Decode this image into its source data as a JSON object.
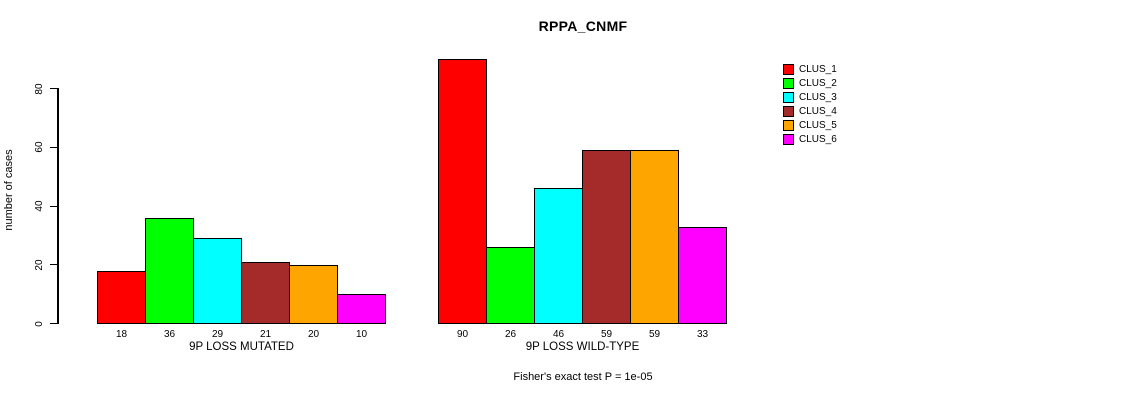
{
  "chart_data": {
    "type": "bar",
    "title": "RPPA_CNMF",
    "ylabel": "number of cases",
    "xlabel": "",
    "ylim": [
      0,
      90
    ],
    "yticks": [
      0,
      20,
      40,
      60,
      80
    ],
    "grid": false,
    "legend_position": "right",
    "bar_value_labels": true,
    "categories": [
      "9P LOSS MUTATED",
      "9P LOSS WILD-TYPE"
    ],
    "series": [
      {
        "name": "CLUS_1",
        "color": "#FF0000",
        "values": [
          18,
          90
        ]
      },
      {
        "name": "CLUS_2",
        "color": "#00FF00",
        "values": [
          36,
          26
        ]
      },
      {
        "name": "CLUS_3",
        "color": "#00FFFF",
        "values": [
          29,
          46
        ]
      },
      {
        "name": "CLUS_4",
        "color": "#A52A2A",
        "values": [
          21,
          59
        ]
      },
      {
        "name": "CLUS_5",
        "color": "#FFA500",
        "values": [
          20,
          59
        ]
      },
      {
        "name": "CLUS_6",
        "color": "#FF00FF",
        "values": [
          10,
          33
        ]
      }
    ],
    "annotation": "Fisher's exact test P = 1e-05"
  },
  "colors": {
    "background": "#FFFFFF",
    "axis": "#000000",
    "bar_border": "#000000",
    "text": "#000000"
  }
}
